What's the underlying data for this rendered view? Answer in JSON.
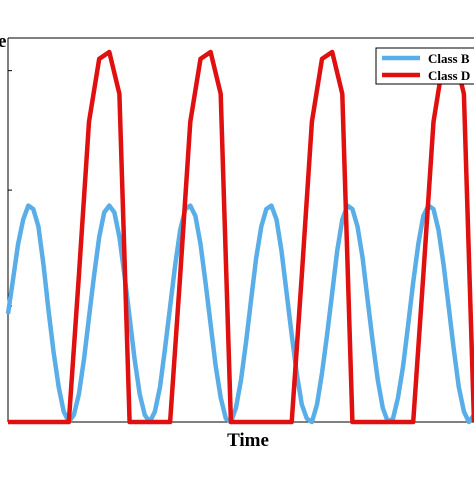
{
  "chart_data": {
    "type": "line",
    "title": "",
    "xlabel": "Time",
    "ylabel": "e",
    "grid": false,
    "legend_position": "top-right",
    "series_colors": [
      "#5aaee8",
      "#e01010"
    ],
    "ylim": [
      0,
      1.1
    ],
    "xlim": [
      0,
      23
    ],
    "series": [
      {
        "name": "Class B",
        "x": [
          0,
          0.25,
          0.5,
          0.75,
          1,
          1.25,
          1.5,
          1.75,
          2,
          2.25,
          2.5,
          2.75,
          3,
          3.25,
          3.5,
          3.75,
          4,
          4.25,
          4.5,
          4.75,
          5,
          5.25,
          5.5,
          5.75,
          6,
          6.25,
          6.5,
          6.75,
          7,
          7.25,
          7.5,
          7.75,
          8,
          8.25,
          8.5,
          8.75,
          9,
          9.25,
          9.5,
          9.75,
          10,
          10.25,
          10.5,
          10.75,
          11,
          11.25,
          11.5,
          11.75,
          12,
          12.25,
          12.5,
          12.75,
          13,
          13.25,
          13.5,
          13.75,
          14,
          14.25,
          14.5,
          14.75,
          15,
          15.25,
          15.5,
          15.75,
          16,
          16.25,
          16.5,
          16.75,
          17,
          17.25,
          17.5,
          17.75,
          18,
          18.25,
          18.5,
          18.75,
          19,
          19.25,
          19.5,
          19.75,
          20,
          20.25,
          20.5,
          20.75,
          21,
          21.25,
          21.5,
          21.75,
          22,
          22.25,
          22.5,
          22.75,
          23
        ],
        "values": [
          0.31,
          0.41,
          0.51,
          0.58,
          0.62,
          0.61,
          0.56,
          0.45,
          0.32,
          0.2,
          0.1,
          0.03,
          0.0,
          0.02,
          0.08,
          0.18,
          0.3,
          0.42,
          0.53,
          0.6,
          0.62,
          0.6,
          0.53,
          0.42,
          0.3,
          0.18,
          0.08,
          0.02,
          0.0,
          0.03,
          0.1,
          0.21,
          0.33,
          0.45,
          0.55,
          0.61,
          0.62,
          0.59,
          0.51,
          0.4,
          0.28,
          0.16,
          0.07,
          0.01,
          0.0,
          0.04,
          0.12,
          0.23,
          0.35,
          0.47,
          0.56,
          0.61,
          0.62,
          0.58,
          0.49,
          0.37,
          0.25,
          0.14,
          0.05,
          0.01,
          0.0,
          0.05,
          0.14,
          0.25,
          0.37,
          0.49,
          0.58,
          0.62,
          0.61,
          0.56,
          0.47,
          0.35,
          0.23,
          0.12,
          0.04,
          0.0,
          0.01,
          0.07,
          0.16,
          0.28,
          0.4,
          0.51,
          0.59,
          0.62,
          0.61,
          0.55,
          0.45,
          0.33,
          0.21,
          0.1,
          0.03,
          0.0,
          0.02
        ]
      },
      {
        "name": "Class D",
        "x": [
          0,
          1,
          2,
          2.5,
          3,
          3.5,
          4,
          4.5,
          5,
          5.5,
          6,
          7,
          8,
          8.5,
          9,
          9.5,
          10,
          10.5,
          11,
          11.5,
          12,
          13,
          14,
          14.5,
          15,
          15.5,
          16,
          16.5,
          17,
          17.5,
          18,
          19,
          20,
          20.5,
          21,
          21.5,
          22,
          22.5,
          23
        ],
        "values": [
          0,
          0,
          0,
          0,
          0,
          0.42,
          0.86,
          1.04,
          1.06,
          0.94,
          0,
          0,
          0,
          0.42,
          0.86,
          1.04,
          1.06,
          0.94,
          0,
          0,
          0,
          0,
          0,
          0.42,
          0.86,
          1.04,
          1.06,
          0.94,
          0,
          0,
          0,
          0,
          0,
          0.42,
          0.86,
          1.04,
          1.06,
          0.94,
          0
        ]
      }
    ]
  }
}
